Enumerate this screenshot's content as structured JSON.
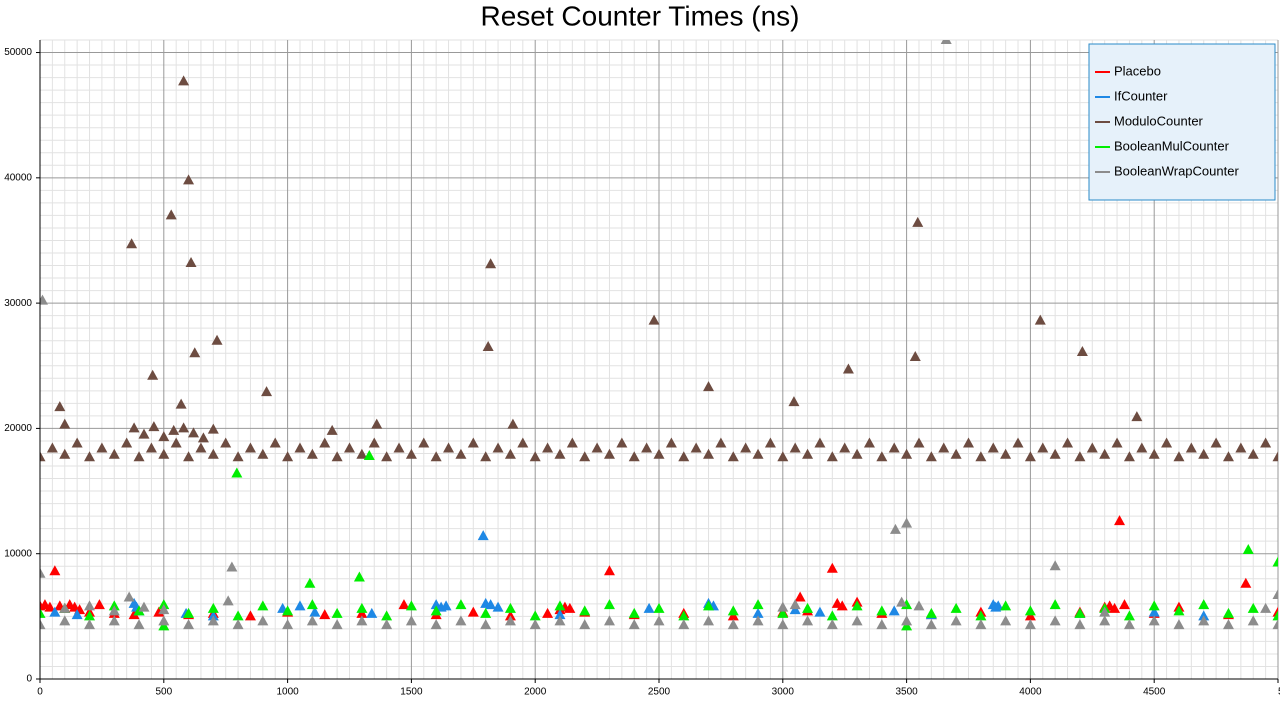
{
  "chart_data": {
    "type": "scatter",
    "title": "Reset Counter Times (ns)",
    "xlim": [
      0,
      5000
    ],
    "ylim": [
      0,
      51000
    ],
    "xticks": [
      0,
      500,
      1000,
      1500,
      2000,
      2500,
      3000,
      3500,
      4000,
      4500,
      5000
    ],
    "yticks": [
      0,
      10000,
      20000,
      30000,
      40000,
      50000
    ],
    "grid": true,
    "minor_divisions": 10,
    "legend": "upper right",
    "series": [
      {
        "name": "Placebo",
        "color": "#ff0000",
        "x": [
          0,
          20,
          40,
          60,
          80,
          100,
          120,
          140,
          160,
          200,
          240,
          300,
          380,
          480,
          600,
          700,
          850,
          1000,
          1150,
          1300,
          1470,
          1600,
          1750,
          1900,
          2050,
          2100,
          2120,
          2140,
          2200,
          2300,
          2400,
          2600,
          2800,
          3000,
          3070,
          3100,
          3200,
          3220,
          3240,
          3300,
          3400,
          3600,
          3800,
          4000,
          4200,
          4300,
          4320,
          4340,
          4360,
          4380,
          4500,
          4600,
          4800,
          4870,
          5000
        ],
        "values": [
          5800,
          5900,
          5700,
          8600,
          5800,
          5600,
          5900,
          5700,
          5500,
          5300,
          5900,
          5200,
          5100,
          5300,
          5100,
          5200,
          5000,
          5300,
          5100,
          5200,
          5900,
          5100,
          5300,
          5000,
          5200,
          5500,
          5700,
          5600,
          5300,
          8600,
          5100,
          5200,
          5000,
          5300,
          6500,
          5400,
          8800,
          6000,
          5800,
          6100,
          5200,
          5100,
          5300,
          5000,
          5300,
          5700,
          5800,
          5600,
          12600,
          5900,
          5200,
          5700,
          5100,
          7600,
          5300
        ]
      },
      {
        "name": "IfCounter",
        "color": "#1e88e5",
        "x": [
          60,
          150,
          380,
          390,
          400,
          590,
          700,
          980,
          1050,
          1110,
          1340,
          1600,
          1620,
          1640,
          1790,
          1800,
          1820,
          1850,
          2100,
          2460,
          2700,
          2720,
          2900,
          3050,
          3150,
          3450,
          3600,
          3850,
          3860,
          3870,
          4200,
          4500,
          4700
        ],
        "values": [
          5300,
          5100,
          6000,
          5700,
          5400,
          5200,
          5000,
          5600,
          5800,
          5300,
          5200,
          5900,
          5700,
          5800,
          11400,
          6000,
          5900,
          5700,
          5100,
          5600,
          6000,
          5800,
          5200,
          5500,
          5300,
          5400,
          5100,
          5900,
          5700,
          5800,
          5200,
          5300,
          5000
        ]
      },
      {
        "name": "ModuloCounter",
        "color": "#6d4c41",
        "x": [
          0,
          50,
          100,
          150,
          200,
          250,
          300,
          350,
          400,
          450,
          500,
          550,
          600,
          650,
          700,
          750,
          800,
          850,
          900,
          950,
          1000,
          1050,
          1100,
          1150,
          1200,
          1250,
          1300,
          1350,
          1400,
          1450,
          1500,
          1550,
          1600,
          1650,
          1700,
          1750,
          1800,
          1850,
          1900,
          1950,
          2000,
          2050,
          2100,
          2150,
          2200,
          2250,
          2300,
          2350,
          2400,
          2450,
          2500,
          2550,
          2600,
          2650,
          2700,
          2750,
          2800,
          2850,
          2900,
          2950,
          3000,
          3050,
          3100,
          3150,
          3200,
          3250,
          3300,
          3350,
          3400,
          3450,
          3500,
          3550,
          3600,
          3650,
          3700,
          3750,
          3800,
          3850,
          3900,
          3950,
          4000,
          4050,
          4100,
          4150,
          4200,
          4250,
          4300,
          4350,
          4400,
          4450,
          4500,
          4550,
          4600,
          4650,
          4700,
          4750,
          4800,
          4850,
          4900,
          4950,
          5000,
          420,
          460,
          500,
          540,
          580,
          620,
          660,
          700,
          100,
          380,
          1180,
          580,
          600,
          530,
          370,
          610,
          625,
          715,
          455,
          915,
          1820,
          1810,
          2480,
          2700,
          3045,
          3265,
          3545,
          3535,
          4040,
          4210,
          4430,
          570,
          80,
          1360,
          1910
        ],
        "values": [
          17700,
          18400,
          17900,
          18800,
          17700,
          18400,
          17900,
          18800,
          17700,
          18400,
          17900,
          18800,
          17700,
          18400,
          17900,
          18800,
          17700,
          18400,
          17900,
          18800,
          17700,
          18400,
          17900,
          18800,
          17700,
          18400,
          17900,
          18800,
          17700,
          18400,
          17900,
          18800,
          17700,
          18400,
          17900,
          18800,
          17700,
          18400,
          17900,
          18800,
          17700,
          18400,
          17900,
          18800,
          17700,
          18400,
          17900,
          18800,
          17700,
          18400,
          17900,
          18800,
          17700,
          18400,
          17900,
          18800,
          17700,
          18400,
          17900,
          18800,
          17700,
          18400,
          17900,
          18800,
          17700,
          18400,
          17900,
          18800,
          17700,
          18400,
          17900,
          18800,
          17700,
          18400,
          17900,
          18800,
          17700,
          18400,
          17900,
          18800,
          17700,
          18400,
          17900,
          18800,
          17700,
          18400,
          17900,
          18800,
          17700,
          18400,
          17900,
          18800,
          17700,
          18400,
          17900,
          18800,
          17700,
          18400,
          17900,
          18800,
          17700,
          19500,
          20100,
          19300,
          19800,
          20000,
          19600,
          19200,
          19900,
          20300,
          20000,
          19800,
          47700,
          39800,
          37000,
          34700,
          33200,
          26000,
          27000,
          24200,
          22900,
          33100,
          26500,
          28600,
          23300,
          22100,
          24700,
          36400,
          25700,
          28600,
          26100,
          20900,
          21900,
          21700,
          20300,
          20300
        ]
      },
      {
        "name": "BooleanMulCounter",
        "color": "#00ee00",
        "x": [
          0,
          100,
          200,
          300,
          400,
          500,
          600,
          700,
          800,
          900,
          1000,
          1100,
          1200,
          1300,
          1400,
          1500,
          1600,
          1700,
          1800,
          1900,
          2000,
          2100,
          2200,
          2300,
          2400,
          2500,
          2600,
          2700,
          2800,
          2900,
          3000,
          3100,
          3200,
          3300,
          3400,
          3500,
          3600,
          3700,
          3800,
          3900,
          4000,
          4100,
          4200,
          4300,
          4400,
          4500,
          4600,
          4700,
          4800,
          4900,
          5000,
          795,
          1330,
          1290,
          1090,
          4880,
          5000,
          3500,
          500
        ],
        "values": [
          5200,
          5600,
          5000,
          5800,
          5400,
          5900,
          5200,
          5600,
          5000,
          5800,
          5400,
          5900,
          5200,
          5600,
          5000,
          5800,
          5400,
          5900,
          5200,
          5600,
          5000,
          5800,
          5400,
          5900,
          5200,
          5600,
          5000,
          5800,
          5400,
          5900,
          5200,
          5600,
          5000,
          5800,
          5400,
          5900,
          5200,
          5600,
          5000,
          5800,
          5400,
          5900,
          5200,
          5600,
          5000,
          5800,
          5400,
          5900,
          5200,
          5600,
          5000,
          16400,
          17800,
          8100,
          7600,
          10300,
          9300,
          4200,
          4200
        ]
      },
      {
        "name": "BooleanWrapCounter",
        "color": "#8c8c8c",
        "x": [
          0,
          100,
          200,
          300,
          400,
          500,
          600,
          700,
          800,
          900,
          1000,
          1100,
          1200,
          1300,
          1400,
          1500,
          1600,
          1700,
          1800,
          1900,
          2000,
          2100,
          2200,
          2300,
          2400,
          2500,
          2600,
          2700,
          2800,
          2900,
          3000,
          3100,
          3200,
          3300,
          3400,
          3500,
          3600,
          3700,
          3800,
          3900,
          4000,
          4100,
          4200,
          4300,
          4400,
          4500,
          4600,
          4700,
          4800,
          4900,
          5000,
          10,
          3660,
          0,
          775,
          3455,
          3500,
          4100,
          5000,
          360,
          760,
          100,
          200,
          300,
          420,
          500,
          3000,
          3050,
          3480,
          3550,
          4300,
          4950
        ],
        "values": [
          4300,
          4600,
          4300,
          4600,
          4300,
          4600,
          4300,
          4600,
          4300,
          4600,
          4300,
          4600,
          4300,
          4600,
          4300,
          4600,
          4300,
          4600,
          4300,
          4600,
          4300,
          4600,
          4300,
          4600,
          4300,
          4600,
          4300,
          4600,
          4300,
          4600,
          4300,
          4600,
          4300,
          4600,
          4300,
          4600,
          4300,
          4600,
          4300,
          4600,
          4300,
          4600,
          4300,
          4600,
          4300,
          4600,
          4300,
          4600,
          4300,
          4600,
          4300,
          30200,
          51000,
          8400,
          8900,
          11900,
          12400,
          9000,
          6700,
          6500,
          6200,
          5600,
          5800,
          5400,
          5700,
          5500,
          5700,
          5900,
          6100,
          5800,
          5300,
          5600
        ]
      }
    ]
  }
}
